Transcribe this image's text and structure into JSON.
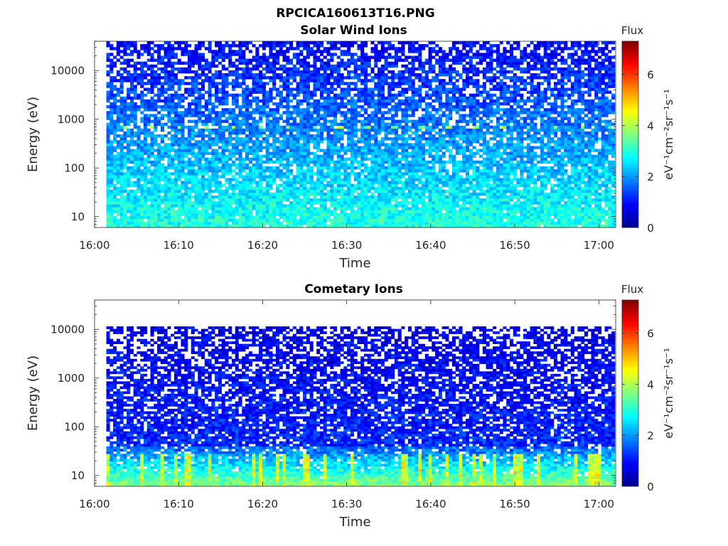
{
  "figure": {
    "title": "RPCICA160613T16.PNG"
  },
  "colors": {
    "colormap": [
      "#00008f",
      "#0000ff",
      "#0080ff",
      "#00ffff",
      "#80ff80",
      "#ffff00",
      "#ff8000",
      "#ff0000",
      "#800000"
    ],
    "background": "#ffffff",
    "axis": "#262626"
  },
  "chart_data": [
    {
      "type": "heatmap",
      "title": "Solar Wind Ions",
      "xlabel": "Time",
      "ylabel": "Energy (eV)",
      "x_ticks": [
        "16:00",
        "16:10",
        "16:20",
        "16:30",
        "16:40",
        "16:50",
        "17:00"
      ],
      "x_range_minutes": [
        0,
        62
      ],
      "data_start_minutes": 1.4,
      "data_end_minutes": 61.9,
      "y_scale": "log",
      "y_ticks": [
        "10",
        "100",
        "1000",
        "10000"
      ],
      "y_range_eV": [
        6,
        40000
      ],
      "colorbar": {
        "label": "Flux",
        "units": "eV⁻¹cm⁻²sr⁻¹s⁻¹",
        "range": [
          0,
          7.3
        ],
        "ticks": [
          "0",
          "2",
          "4",
          "6"
        ]
      },
      "features": {
        "background_flux": 1.0,
        "low_energy_flux": 2.0,
        "periodic_band_energy_eV": 650,
        "periodic_band_flux": 3.5,
        "periodic_band_period_minutes": 3.2
      }
    },
    {
      "type": "heatmap",
      "title": "Cometary Ions",
      "xlabel": "Time",
      "ylabel": "Energy (eV)",
      "x_ticks": [
        "16:00",
        "16:10",
        "16:20",
        "16:30",
        "16:40",
        "16:50",
        "17:00"
      ],
      "x_range_minutes": [
        0,
        62
      ],
      "data_start_minutes": 1.4,
      "data_end_minutes": 61.9,
      "y_scale": "log",
      "y_ticks": [
        "10",
        "100",
        "1000",
        "10000"
      ],
      "y_range_eV": [
        6,
        40000
      ],
      "data_max_energy_eV": 11500,
      "colorbar": {
        "label": "Flux",
        "units": "eV⁻¹cm⁻²sr⁻¹s⁻¹",
        "range": [
          0,
          7.3
        ],
        "ticks": [
          "0",
          "2",
          "4",
          "6"
        ]
      },
      "features": {
        "background_flux": 0.8,
        "low_energy_flux": 3.0,
        "low_energy_peak_flux": 4.6
      }
    }
  ]
}
